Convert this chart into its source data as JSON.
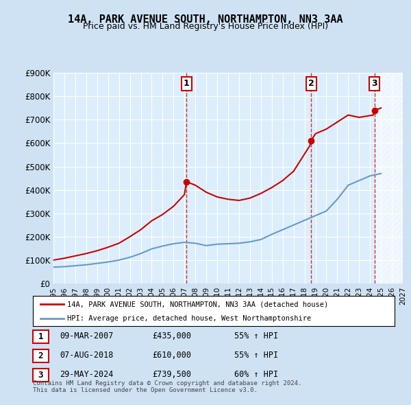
{
  "title": "14A, PARK AVENUE SOUTH, NORTHAMPTON, NN3 3AA",
  "subtitle": "Price paid vs. HM Land Registry's House Price Index (HPI)",
  "bg_color": "#cfe2f3",
  "plot_bg_color": "#dceefb",
  "legend_label_red": "14A, PARK AVENUE SOUTH, NORTHAMPTON, NN3 3AA (detached house)",
  "legend_label_blue": "HPI: Average price, detached house, West Northamptonshire",
  "footer": "Contains HM Land Registry data © Crown copyright and database right 2024.\nThis data is licensed under the Open Government Licence v3.0.",
  "transactions": [
    {
      "num": 1,
      "date": "09-MAR-2007",
      "price": "£435,000",
      "hpi": "55% ↑ HPI",
      "year": 2007.19
    },
    {
      "num": 2,
      "date": "07-AUG-2018",
      "price": "£610,000",
      "hpi": "55% ↑ HPI",
      "year": 2018.6
    },
    {
      "num": 3,
      "date": "29-MAY-2024",
      "price": "£739,500",
      "hpi": "60% ↑ HPI",
      "year": 2024.41
    }
  ],
  "transaction_prices": [
    435000,
    610000,
    739500
  ],
  "ylim": [
    0,
    900000
  ],
  "xlim_start": 1995,
  "xlim_end": 2027,
  "hpi_color": "#6699cc",
  "price_color": "#cc0000",
  "vline_color": "#cc0000",
  "hpi_data_years": [
    1995,
    1996,
    1997,
    1998,
    1999,
    2000,
    2001,
    2002,
    2003,
    2004,
    2005,
    2006,
    2007,
    2008,
    2009,
    2010,
    2011,
    2012,
    2013,
    2014,
    2015,
    2016,
    2017,
    2018,
    2019,
    2020,
    2021,
    2022,
    2023,
    2024,
    2025
  ],
  "hpi_data_values": [
    70000,
    72000,
    76000,
    80000,
    86000,
    92000,
    100000,
    112000,
    128000,
    148000,
    160000,
    170000,
    176000,
    172000,
    162000,
    168000,
    170000,
    172000,
    178000,
    188000,
    210000,
    230000,
    250000,
    270000,
    290000,
    310000,
    360000,
    420000,
    440000,
    460000,
    470000
  ],
  "price_data_years": [
    1995,
    1996,
    1997,
    1998,
    1999,
    2000,
    2001,
    2002,
    2003,
    2004,
    2005,
    2006,
    2007.0,
    2007.19,
    2008,
    2009,
    2010,
    2011,
    2012,
    2013,
    2014,
    2015,
    2016,
    2017,
    2018.5,
    2018.6,
    2019,
    2020,
    2021,
    2022,
    2023,
    2024.3,
    2024.41,
    2025
  ],
  "price_data_values": [
    100000,
    108000,
    118000,
    128000,
    140000,
    155000,
    172000,
    200000,
    230000,
    268000,
    295000,
    330000,
    380000,
    435000,
    420000,
    390000,
    370000,
    360000,
    355000,
    365000,
    385000,
    410000,
    440000,
    480000,
    590000,
    610000,
    640000,
    660000,
    690000,
    720000,
    710000,
    720000,
    739500,
    750000
  ]
}
